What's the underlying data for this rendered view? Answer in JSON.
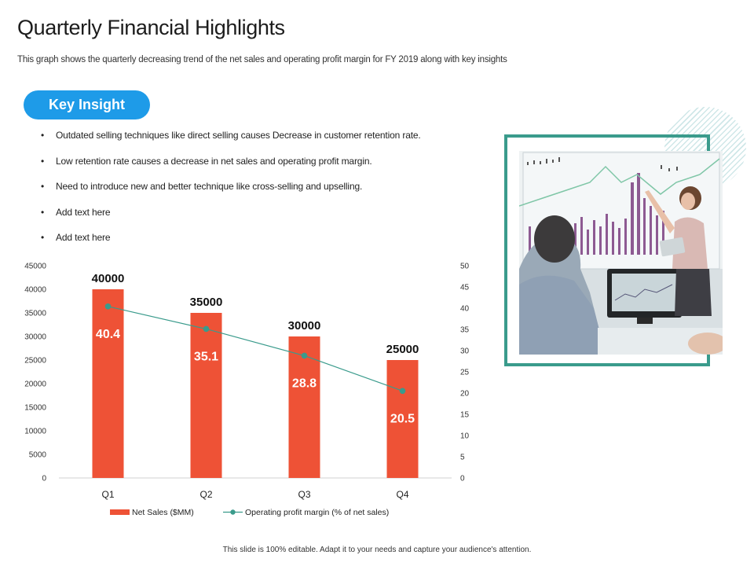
{
  "header": {
    "title": "Quarterly Financial Highlights",
    "subtitle": "This graph shows the quarterly decreasing trend of the net sales and operating profit margin for FY 2019 along with key insights"
  },
  "insight": {
    "label": "Key Insight",
    "bullets": [
      "Outdated selling techniques like direct selling causes Decrease in customer retention rate.",
      "Low retention rate causes a decrease in net sales and operating profit margin.",
      "Need to introduce new and better technique like cross-selling and upselling.",
      "Add text here",
      "Add text here"
    ]
  },
  "footer": {
    "text": "This slide is 100% editable. Adapt it to your needs and capture your audience's attention."
  },
  "colors": {
    "accent": "#1e9be8",
    "bar": "#ee5236",
    "line": "#3a9b8c",
    "frame": "#3a9b8c"
  },
  "chart_data": {
    "type": "bar",
    "categories": [
      "Q1",
      "Q2",
      "Q3",
      "Q4"
    ],
    "series": [
      {
        "name": "Net Sales ($MM)",
        "type": "bar",
        "axis": "left",
        "values": [
          40000,
          35000,
          30000,
          25000
        ]
      },
      {
        "name": "Operating profit margin (% of net sales)",
        "type": "line",
        "axis": "right",
        "values": [
          40.4,
          35.1,
          28.8,
          20.5
        ]
      }
    ],
    "y_left": {
      "min": 0,
      "max": 45000,
      "ticks": [
        0,
        5000,
        10000,
        15000,
        20000,
        25000,
        30000,
        35000,
        40000,
        45000
      ]
    },
    "y_right": {
      "min": 0,
      "max": 50,
      "ticks": [
        0,
        5,
        10,
        15,
        20,
        25,
        30,
        35,
        40,
        45,
        50
      ]
    },
    "grid": false,
    "legend": "bottom"
  }
}
